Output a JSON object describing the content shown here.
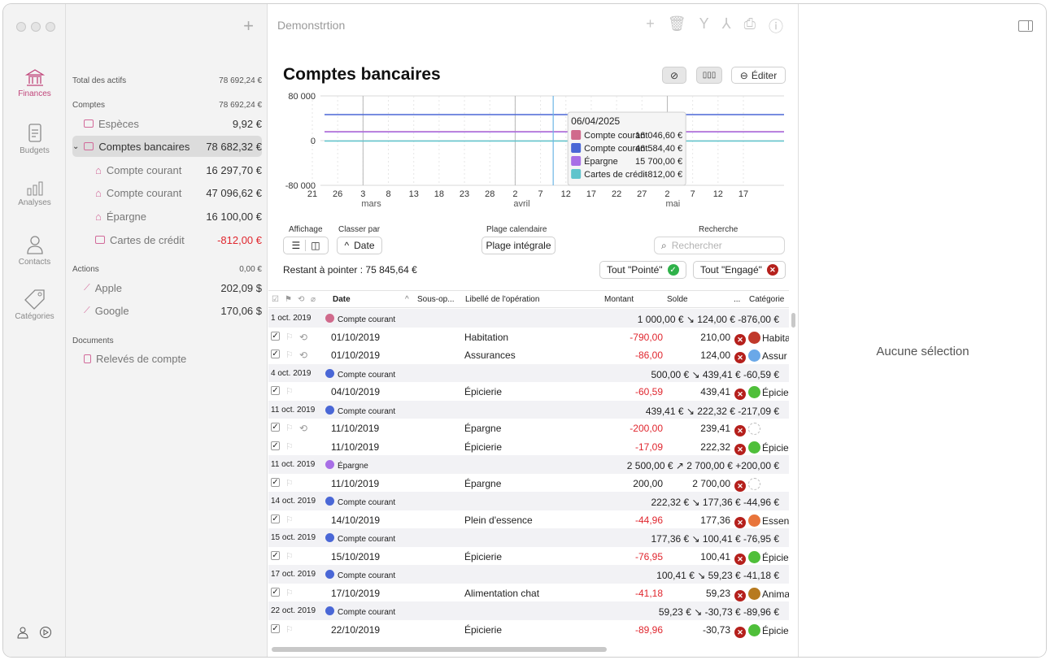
{
  "rail": {
    "items": [
      {
        "label": "Finances",
        "icon": "bank-icon",
        "active": true
      },
      {
        "label": "Budgets",
        "icon": "document-icon"
      },
      {
        "label": "Analyses",
        "icon": "bar-chart-icon"
      },
      {
        "label": "Contacts",
        "icon": "person-icon"
      },
      {
        "label": "Catégories",
        "icon": "tag-icon"
      }
    ]
  },
  "sidebar": {
    "total_label": "Total des actifs",
    "total_value": "78 692,24 €",
    "comptes_label": "Comptes",
    "comptes_value": "78 692,24 €",
    "especes_label": "Espèces",
    "especes_value": "9,92 €",
    "bancaires_label": "Comptes bancaires",
    "bancaires_value": "78 682,32 €",
    "cc1_label": "Compte courant",
    "cc1_value": "16 297,70 €",
    "cc2_label": "Compte courant",
    "cc2_value": "47 096,62 €",
    "epargne_label": "Épargne",
    "epargne_value": "16 100,00 €",
    "cartes_label": "Cartes de crédit",
    "cartes_value": "-812,00 €",
    "actions_label": "Actions",
    "actions_value": "0,00 €",
    "apple_label": "Apple",
    "apple_value": "202,09 $",
    "google_label": "Google",
    "google_value": "170,06 $",
    "documents_label": "Documents",
    "releves_label": "Relevés de compte"
  },
  "header": {
    "doc_title": "Demonstrtion",
    "page_title": "Comptes bancaires",
    "edit_label": "Éditer"
  },
  "controls": {
    "affichage_label": "Affichage",
    "classer_label": "Classer par",
    "classer_value": "Date",
    "plage_label": "Plage calendaire",
    "plage_value": "Plage intégrale",
    "recherche_label": "Recherche",
    "search_placeholder": "Rechercher",
    "restant_label": "Restant à pointer : ",
    "restant_value": "75 845,64 €",
    "tout_pointe": "Tout \"Pointé\"",
    "tout_engage": "Tout \"Engagé\""
  },
  "chart_data": {
    "type": "line",
    "y_ticks": [
      "80 000",
      "0",
      "-80 000"
    ],
    "ylim": [
      -80000,
      80000
    ],
    "x_ticks": [
      "21",
      "26",
      "3",
      "8",
      "13",
      "18",
      "23",
      "28",
      "2",
      "7",
      "12",
      "17",
      "22",
      "27",
      "2",
      "7",
      "12",
      "17"
    ],
    "month_labels": [
      "mars",
      "avril",
      "mai"
    ],
    "series": [
      {
        "name": "Compte courant",
        "color": "#d06a8c",
        "values_start": 16046.6,
        "values_end": 16046.6
      },
      {
        "name": "Compte courant",
        "color": "#4a67d6",
        "values_start": 46584.4,
        "values_end": 46584.4
      },
      {
        "name": "Épargne",
        "color": "#a86fe6",
        "values_start": 15700.0,
        "values_end": 15700.0
      },
      {
        "name": "Cartes de crédit",
        "color": "#5fc4cc",
        "values_start": -812.0,
        "values_end": -812.0
      }
    ],
    "tooltip": {
      "date": "06/04/2025",
      "rows": [
        {
          "label": "Compte courant",
          "value": "16 046,60 €",
          "color": "#d06a8c"
        },
        {
          "label": "Compte courant",
          "value": "46 584,40 €",
          "color": "#4a67d6"
        },
        {
          "label": "Épargne",
          "value": "15 700,00 €",
          "color": "#a86fe6"
        },
        {
          "label": "Cartes de crédit",
          "value": "-812,00 €",
          "color": "#5fc4cc"
        }
      ]
    }
  },
  "table": {
    "headers": {
      "date": "Date",
      "sous": "Sous-op...",
      "libelle": "Libellé de l'opération",
      "montant": "Montant",
      "solde": "Solde",
      "dots": "...",
      "categorie": "Catégorie"
    },
    "rows": [
      {
        "type": "group",
        "date": "1 oct. 2019",
        "account": "Compte courant",
        "color": "#d06a8c",
        "summary": "1 000,00 € ↘ 124,00 € -876,00 €"
      },
      {
        "type": "tx",
        "date": "01/10/2019",
        "label": "Habitation",
        "amount": "-790,00",
        "balance": "210,00",
        "cat": "Habita",
        "cat_color": "#c0392b",
        "repeat": true
      },
      {
        "type": "tx",
        "date": "01/10/2019",
        "label": "Assurances",
        "amount": "-86,00",
        "balance": "124,00",
        "cat": "Assur",
        "cat_color": "#6aa8e8",
        "repeat": true
      },
      {
        "type": "group",
        "date": "4 oct. 2019",
        "account": "Compte courant",
        "color": "#4a67d6",
        "summary": "500,00 € ↘ 439,41 € -60,59 €"
      },
      {
        "type": "tx",
        "date": "04/10/2019",
        "label": "Épicierie",
        "amount": "-60,59",
        "balance": "439,41",
        "cat": "Épicie",
        "cat_color": "#4fbf3a"
      },
      {
        "type": "group",
        "date": "11 oct. 2019",
        "account": "Compte courant",
        "color": "#4a67d6",
        "summary": "439,41 € ↘ 222,32 € -217,09 €"
      },
      {
        "type": "tx",
        "date": "11/10/2019",
        "label": "Épargne",
        "amount": "-200,00",
        "balance": "239,41",
        "cat": "",
        "cat_color": "",
        "repeat": true
      },
      {
        "type": "tx",
        "date": "11/10/2019",
        "label": "Épicierie",
        "amount": "-17,09",
        "balance": "222,32",
        "cat": "Épicie",
        "cat_color": "#4fbf3a"
      },
      {
        "type": "group",
        "date": "11 oct. 2019",
        "account": "Épargne",
        "color": "#a86fe6",
        "summary": "2 500,00 € ↗ 2 700,00 € +200,00 €"
      },
      {
        "type": "tx",
        "date": "11/10/2019",
        "label": "Épargne",
        "amount": "200,00",
        "balance": "2 700,00",
        "cat": "",
        "cat_color": "",
        "positive": true
      },
      {
        "type": "group",
        "date": "14 oct. 2019",
        "account": "Compte courant",
        "color": "#4a67d6",
        "summary": "222,32 € ↘ 177,36 € -44,96 €"
      },
      {
        "type": "tx",
        "date": "14/10/2019",
        "label": "Plein d'essence",
        "amount": "-44,96",
        "balance": "177,36",
        "cat": "Essen",
        "cat_color": "#e8743b"
      },
      {
        "type": "group",
        "date": "15 oct. 2019",
        "account": "Compte courant",
        "color": "#4a67d6",
        "summary": "177,36 € ↘ 100,41 € -76,95 €"
      },
      {
        "type": "tx",
        "date": "15/10/2019",
        "label": "Épicierie",
        "amount": "-76,95",
        "balance": "100,41",
        "cat": "Épicie",
        "cat_color": "#4fbf3a"
      },
      {
        "type": "group",
        "date": "17 oct. 2019",
        "account": "Compte courant",
        "color": "#4a67d6",
        "summary": "100,41 € ↘ 59,23 € -41,18 €"
      },
      {
        "type": "tx",
        "date": "17/10/2019",
        "label": "Alimentation chat",
        "amount": "-41,18",
        "balance": "59,23",
        "cat": "Anima",
        "cat_color": "#b77a1f"
      },
      {
        "type": "group",
        "date": "22 oct. 2019",
        "account": "Compte courant",
        "color": "#4a67d6",
        "summary": "59,23 € ↘ -30,73 € -89,96 €"
      },
      {
        "type": "tx",
        "date": "22/10/2019",
        "label": "Épicierie",
        "amount": "-89,96",
        "balance": "-30,73",
        "cat": "Épicie",
        "cat_color": "#4fbf3a"
      }
    ]
  },
  "right": {
    "empty_label": "Aucune sélection"
  }
}
